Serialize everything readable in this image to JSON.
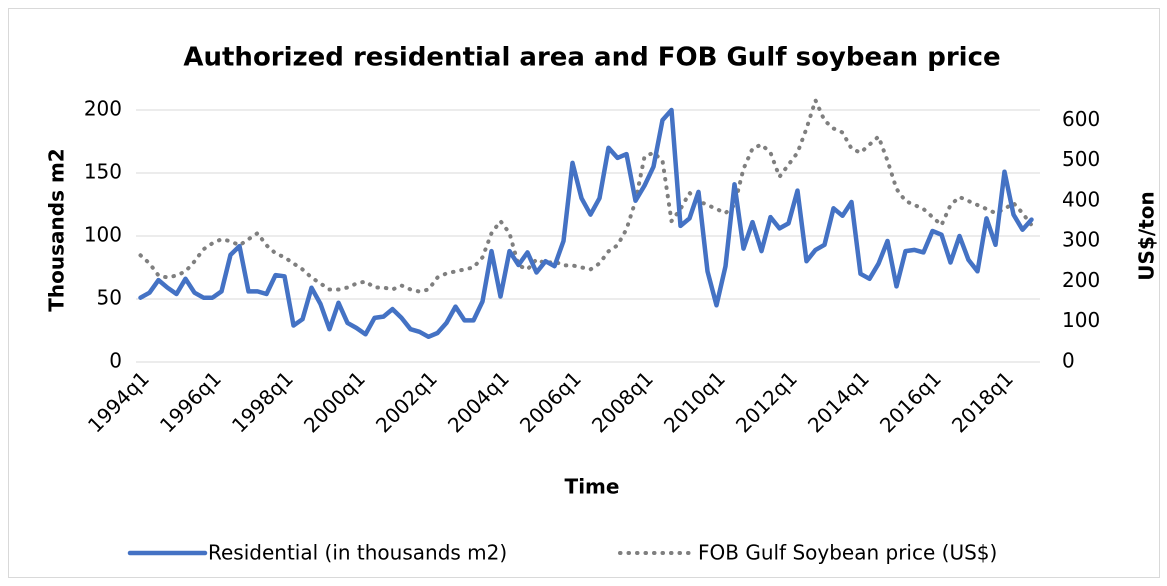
{
  "chart_data": {
    "type": "line",
    "title": "Authorized residential area and FOB Gulf soybean price",
    "x_label": "Time",
    "y_label": "Thousands m2",
    "y2_label": "US$/ton",
    "categories": [
      "1994q1",
      null,
      null,
      null,
      null,
      null,
      null,
      null,
      "1996q1",
      null,
      null,
      null,
      null,
      null,
      null,
      null,
      "1998q1",
      null,
      null,
      null,
      null,
      null,
      null,
      null,
      "2000q1",
      null,
      null,
      null,
      null,
      null,
      null,
      null,
      "2002q1",
      null,
      null,
      null,
      null,
      null,
      null,
      null,
      "2004q1",
      null,
      null,
      null,
      null,
      null,
      null,
      null,
      "2006q1",
      null,
      null,
      null,
      null,
      null,
      null,
      null,
      "2008q1",
      null,
      null,
      null,
      null,
      null,
      null,
      null,
      "2010q1",
      null,
      null,
      null,
      null,
      null,
      null,
      null,
      "2012q1",
      null,
      null,
      null,
      null,
      null,
      null,
      null,
      "2014q1",
      null,
      null,
      null,
      null,
      null,
      null,
      null,
      "2016q1",
      null,
      null,
      null,
      null,
      null,
      null,
      null,
      "2018q1",
      null,
      null,
      null
    ],
    "series": [
      {
        "name": "Residential (in thousands m2)",
        "color": "#4472c4",
        "style": "solid",
        "axis": "y",
        "values": [
          51,
          55,
          65,
          59,
          54,
          66,
          55,
          51,
          51,
          56,
          85,
          92,
          56,
          56,
          54,
          69,
          68,
          29,
          34,
          59,
          46,
          26,
          47,
          31,
          27,
          22,
          35,
          36,
          42,
          35,
          26,
          24,
          20,
          23,
          31,
          44,
          33,
          33,
          48,
          88,
          52,
          88,
          77,
          87,
          71,
          80,
          76,
          96,
          158,
          130,
          117,
          130,
          170,
          162,
          165,
          128,
          140,
          155,
          192,
          200,
          108,
          114,
          135,
          72,
          45,
          76,
          141,
          90,
          111,
          88,
          115,
          106,
          110,
          136,
          80,
          89,
          93,
          122,
          116,
          127,
          70,
          66,
          78,
          96,
          60,
          88,
          89,
          87,
          104,
          101,
          79,
          100,
          81,
          72,
          114,
          93,
          151,
          117,
          105,
          113
        ]
      },
      {
        "name": "FOB Gulf Soybean price (US$)",
        "color": "#7f7f7f",
        "style": "dotted",
        "axis": "y2",
        "values": [
          265,
          245,
          215,
          210,
          215,
          225,
          250,
          280,
          295,
          305,
          300,
          290,
          305,
          320,
          290,
          270,
          260,
          245,
          230,
          210,
          195,
          180,
          180,
          185,
          195,
          200,
          185,
          185,
          180,
          190,
          180,
          175,
          180,
          210,
          220,
          225,
          230,
          235,
          260,
          320,
          350,
          320,
          240,
          230,
          255,
          245,
          250,
          240,
          240,
          235,
          230,
          245,
          275,
          290,
          330,
          400,
          510,
          520,
          500,
          350,
          380,
          420,
          400,
          390,
          380,
          370,
          390,
          480,
          530,
          540,
          520,
          460,
          490,
          520,
          580,
          650,
          600,
          580,
          570,
          530,
          520,
          540,
          560,
          500,
          430,
          400,
          390,
          380,
          360,
          340,
          390,
          410,
          400,
          390,
          380,
          370,
          380,
          395,
          370,
          340
        ]
      }
    ],
    "ylim": [
      0,
      200
    ],
    "yticks": [
      0,
      50,
      100,
      150,
      200
    ],
    "y2lim": [
      0,
      626
    ],
    "y2ticks": [
      0,
      100,
      200,
      300,
      400,
      500,
      600
    ],
    "grid": true,
    "legend": "bottom"
  }
}
